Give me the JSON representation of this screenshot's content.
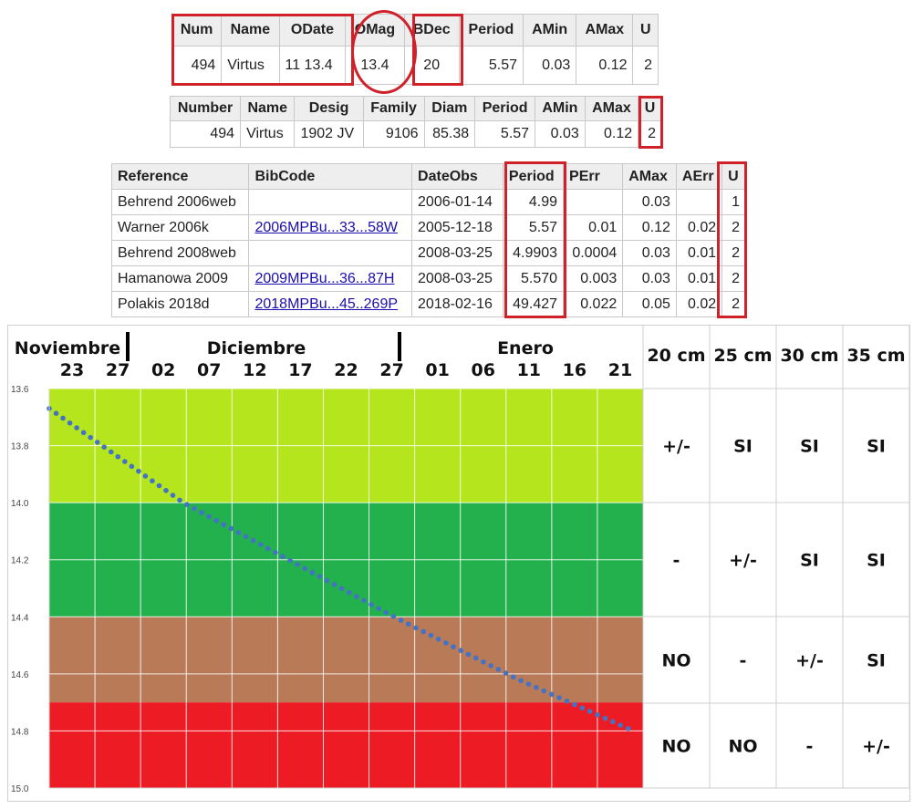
{
  "table1": {
    "headers": [
      "Num",
      "Name",
      "ODate",
      "OMag",
      "BDec",
      "Period",
      "AMin",
      "AMax",
      "U"
    ],
    "row": [
      "494",
      "Virtus",
      "11 13.4",
      "13.4",
      "20",
      "5.57",
      "0.03",
      "0.12",
      "2"
    ]
  },
  "table2": {
    "headers": [
      "Number",
      "Name",
      "Desig",
      "Family",
      "Diam",
      "Period",
      "AMin",
      "AMax",
      "U"
    ],
    "row": [
      "494",
      "Virtus",
      "1902 JV",
      "9106",
      "85.38",
      "5.57",
      "0.03",
      "0.12",
      "2"
    ]
  },
  "table3": {
    "headers": [
      "Reference",
      "BibCode",
      "DateObs",
      "Period",
      "PErr",
      "AMax",
      "AErr",
      "U"
    ],
    "rows": [
      [
        "Behrend 2006web",
        "",
        "2006-01-14",
        "4.99",
        "",
        "0.03",
        "",
        "1"
      ],
      [
        "Warner 2006k",
        "2006MPBu...33...58W",
        "2005-12-18",
        "5.57",
        "0.01",
        "0.12",
        "0.02",
        "2"
      ],
      [
        "Behrend 2008web",
        "",
        "2008-03-25",
        "4.9903",
        "0.0004",
        "0.03",
        "0.01",
        "2"
      ],
      [
        "Hamanowa 2009",
        "2009MPBu...36...87H",
        "2008-03-25",
        "5.570",
        "0.003",
        "0.03",
        "0.01",
        "2"
      ],
      [
        "Polakis 2018d",
        "2018MPBu...45..269P",
        "2018-02-16",
        "49.427",
        "0.022",
        "0.05",
        "0.02",
        "2"
      ]
    ]
  },
  "chart_data": {
    "type": "line",
    "months": [
      "Noviembre",
      "Diciembre",
      "Enero"
    ],
    "x_ticks": [
      "23",
      "27",
      "02",
      "07",
      "12",
      "17",
      "22",
      "27",
      "01",
      "06",
      "11",
      "16",
      "21"
    ],
    "ylim": [
      13.6,
      15.0
    ],
    "y_ticks": [
      "13.6",
      "13.8",
      "14.0",
      "14.2",
      "14.4",
      "14.6",
      "14.8",
      "15.0"
    ],
    "bands": [
      {
        "from": 13.6,
        "to": 14.0,
        "color": "#b5e61d"
      },
      {
        "from": 14.0,
        "to": 14.4,
        "color": "#22b14c"
      },
      {
        "from": 14.4,
        "to": 14.7,
        "color": "#b97a57"
      },
      {
        "from": 14.7,
        "to": 15.0,
        "color": "#ed1c24"
      }
    ],
    "series": [
      {
        "values": [
          [
            "2012-11-23",
            13.67
          ],
          [
            "2012-12-07",
            14.0
          ],
          [
            "2012-12-29",
            14.4
          ],
          [
            "2013-01-11",
            14.62
          ],
          [
            "2013-01-23",
            14.8
          ]
        ]
      }
    ],
    "x_start": "2012-11-23",
    "x_end": "2013-01-24",
    "dot_color": "#4472c4",
    "telescopes": [
      "20 cm",
      "25 cm",
      "30 cm",
      "35 cm"
    ],
    "feasibility": [
      [
        "+/-",
        "SI",
        "SI",
        "SI"
      ],
      [
        "-",
        "+/-",
        "SI",
        "SI"
      ],
      [
        "NO",
        "-",
        "+/-",
        "SI"
      ],
      [
        "NO",
        "NO",
        "-",
        "+/-"
      ]
    ]
  },
  "colors": {
    "highlight": "#d0202a"
  }
}
